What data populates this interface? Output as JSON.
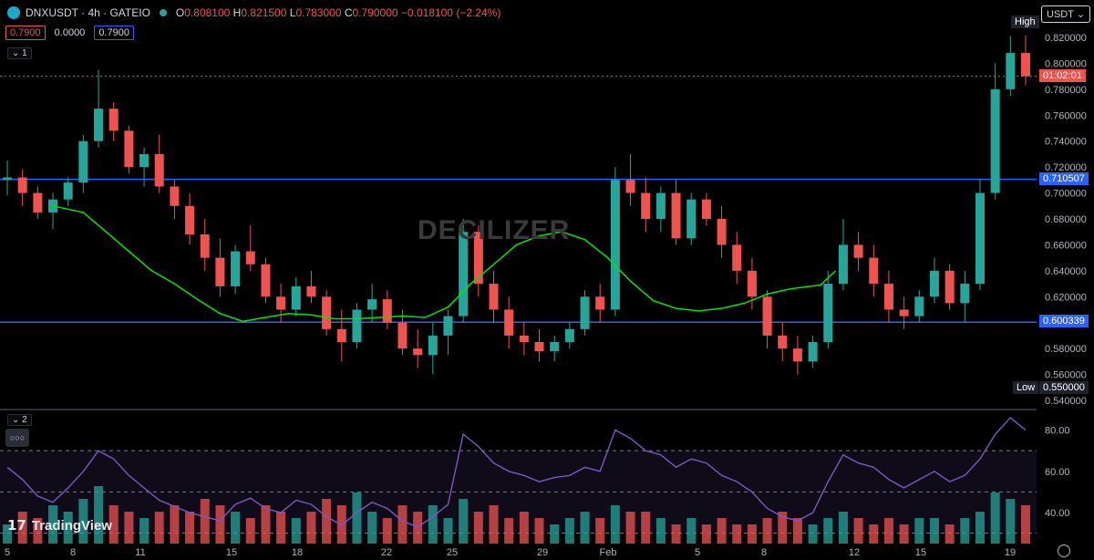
{
  "header": {
    "symbol": "DNXUSDT · 4h · GATEIO",
    "o_label": "O",
    "o": "0.808100",
    "h_label": "H",
    "h": "0.821500",
    "l_label": "L",
    "l": "0.783000",
    "c_label": "C",
    "c": "0.790000",
    "change": "−0.018100 (−2.24%)",
    "bid": "0.7900",
    "spread": "0.0000",
    "ask": "0.7900",
    "pane1_tag": "1",
    "pane2_tag": "2",
    "more_icon": "ellipsis-icon",
    "dots": "○○○"
  },
  "currency": "USDT",
  "watermark": "DECILIZER",
  "brand": "TradingView",
  "colors": {
    "up": "#26a69a",
    "down": "#ef5350",
    "level": "#2962ff",
    "ma": "#00e600",
    "rsi": "#7e57c2",
    "current": "#ef5350"
  },
  "chart_data": [
    {
      "type": "candlestick",
      "title": "DNXUSDT · 4h · GATEIO",
      "ylim": [
        0.54,
        0.83
      ],
      "y_ticks": [
        "0.820000",
        "0.800000",
        "0.780000",
        "0.760000",
        "0.740000",
        "0.720000",
        "0.700000",
        "0.680000",
        "0.660000",
        "0.640000",
        "0.620000",
        "0.600000",
        "0.580000",
        "0.560000",
        "0.540000"
      ],
      "x_ticks": [
        "5",
        "8",
        "11",
        "15",
        "18",
        "22",
        "25",
        "29",
        "Feb",
        "5",
        "8",
        "12",
        "15",
        "19"
      ],
      "levels": [
        {
          "value": 0.710507,
          "label": "0.710507"
        },
        {
          "value": 0.600339,
          "label": "0.600339"
        }
      ],
      "current_price": {
        "value": 0.79,
        "countdown": "01:02:01"
      },
      "high_label": "High",
      "low_label": "Low",
      "low_value": "0.550000",
      "ma_series": [
        [
          3.0,
          0.69
        ],
        [
          5.0,
          0.685
        ],
        [
          6.5,
          0.67
        ],
        [
          8.0,
          0.655
        ],
        [
          9.5,
          0.64
        ],
        [
          11.0,
          0.63
        ],
        [
          12.5,
          0.618
        ],
        [
          14.0,
          0.607
        ],
        [
          15.5,
          0.601
        ],
        [
          17.0,
          0.604
        ],
        [
          18.5,
          0.607
        ],
        [
          20.0,
          0.606
        ],
        [
          21.5,
          0.603
        ],
        [
          23.0,
          0.603
        ],
        [
          24.5,
          0.604
        ],
        [
          26.0,
          0.605
        ],
        [
          27.5,
          0.604
        ],
        [
          29.0,
          0.612
        ],
        [
          30.5,
          0.63
        ],
        [
          32.0,
          0.645
        ],
        [
          33.5,
          0.66
        ],
        [
          35.0,
          0.667
        ],
        [
          36.5,
          0.67
        ],
        [
          38.0,
          0.664
        ],
        [
          39.5,
          0.65
        ],
        [
          41.0,
          0.632
        ],
        [
          42.5,
          0.617
        ],
        [
          44.0,
          0.611
        ],
        [
          45.5,
          0.609
        ],
        [
          47.0,
          0.611
        ],
        [
          48.5,
          0.615
        ],
        [
          50.0,
          0.622
        ],
        [
          51.5,
          0.626
        ],
        [
          53.5,
          0.629
        ],
        [
          54.5,
          0.64
        ]
      ],
      "ohlc": [
        [
          0.71,
          0.725,
          0.698,
          0.712
        ],
        [
          0.712,
          0.718,
          0.69,
          0.7
        ],
        [
          0.7,
          0.705,
          0.68,
          0.685
        ],
        [
          0.685,
          0.7,
          0.672,
          0.695
        ],
        [
          0.695,
          0.712,
          0.69,
          0.708
        ],
        [
          0.708,
          0.745,
          0.7,
          0.74
        ],
        [
          0.74,
          0.795,
          0.735,
          0.765
        ],
        [
          0.765,
          0.77,
          0.74,
          0.748
        ],
        [
          0.748,
          0.752,
          0.715,
          0.72
        ],
        [
          0.72,
          0.735,
          0.705,
          0.73
        ],
        [
          0.73,
          0.745,
          0.7,
          0.705
        ],
        [
          0.705,
          0.71,
          0.68,
          0.69
        ],
        [
          0.69,
          0.7,
          0.66,
          0.668
        ],
        [
          0.668,
          0.68,
          0.64,
          0.65
        ],
        [
          0.65,
          0.665,
          0.62,
          0.628
        ],
        [
          0.628,
          0.66,
          0.622,
          0.655
        ],
        [
          0.655,
          0.675,
          0.64,
          0.645
        ],
        [
          0.645,
          0.65,
          0.615,
          0.62
        ],
        [
          0.62,
          0.63,
          0.6,
          0.61
        ],
        [
          0.61,
          0.635,
          0.605,
          0.628
        ],
        [
          0.628,
          0.64,
          0.615,
          0.62
        ],
        [
          0.62,
          0.625,
          0.59,
          0.595
        ],
        [
          0.595,
          0.61,
          0.57,
          0.585
        ],
        [
          0.585,
          0.615,
          0.58,
          0.61
        ],
        [
          0.61,
          0.63,
          0.6,
          0.618
        ],
        [
          0.618,
          0.625,
          0.595,
          0.6
        ],
        [
          0.6,
          0.61,
          0.575,
          0.58
        ],
        [
          0.58,
          0.595,
          0.565,
          0.575
        ],
        [
          0.575,
          0.6,
          0.56,
          0.59
        ],
        [
          0.59,
          0.61,
          0.575,
          0.605
        ],
        [
          0.605,
          0.68,
          0.6,
          0.67
        ],
        [
          0.67,
          0.675,
          0.62,
          0.63
        ],
        [
          0.63,
          0.64,
          0.6,
          0.61
        ],
        [
          0.61,
          0.62,
          0.58,
          0.59
        ],
        [
          0.59,
          0.6,
          0.575,
          0.585
        ],
        [
          0.585,
          0.595,
          0.57,
          0.578
        ],
        [
          0.578,
          0.59,
          0.57,
          0.585
        ],
        [
          0.585,
          0.6,
          0.58,
          0.595
        ],
        [
          0.595,
          0.625,
          0.59,
          0.62
        ],
        [
          0.62,
          0.63,
          0.6,
          0.61
        ],
        [
          0.61,
          0.72,
          0.605,
          0.71
        ],
        [
          0.71,
          0.73,
          0.69,
          0.7
        ],
        [
          0.7,
          0.712,
          0.67,
          0.68
        ],
        [
          0.68,
          0.705,
          0.67,
          0.7
        ],
        [
          0.7,
          0.71,
          0.66,
          0.665
        ],
        [
          0.665,
          0.7,
          0.66,
          0.695
        ],
        [
          0.695,
          0.7,
          0.675,
          0.68
        ],
        [
          0.68,
          0.69,
          0.65,
          0.66
        ],
        [
          0.66,
          0.67,
          0.63,
          0.64
        ],
        [
          0.64,
          0.65,
          0.61,
          0.62
        ],
        [
          0.62,
          0.625,
          0.58,
          0.59
        ],
        [
          0.59,
          0.6,
          0.57,
          0.58
        ],
        [
          0.58,
          0.59,
          0.56,
          0.57
        ],
        [
          0.57,
          0.59,
          0.565,
          0.585
        ],
        [
          0.585,
          0.64,
          0.58,
          0.63
        ],
        [
          0.63,
          0.68,
          0.625,
          0.66
        ],
        [
          0.66,
          0.67,
          0.64,
          0.65
        ],
        [
          0.65,
          0.66,
          0.62,
          0.63
        ],
        [
          0.63,
          0.64,
          0.6,
          0.61
        ],
        [
          0.61,
          0.62,
          0.595,
          0.605
        ],
        [
          0.605,
          0.625,
          0.6,
          0.62
        ],
        [
          0.62,
          0.65,
          0.615,
          0.64
        ],
        [
          0.64,
          0.645,
          0.61,
          0.615
        ],
        [
          0.615,
          0.64,
          0.6,
          0.63
        ],
        [
          0.63,
          0.71,
          0.625,
          0.7
        ],
        [
          0.7,
          0.8,
          0.695,
          0.78
        ],
        [
          0.78,
          0.821,
          0.775,
          0.808
        ],
        [
          0.808,
          0.8215,
          0.783,
          0.79
        ]
      ],
      "rsi": {
        "ylim": [
          20,
          90
        ],
        "y_ticks": [
          "80.00",
          "60.00",
          "40.00"
        ],
        "bands": [
          70,
          30
        ],
        "values": [
          62,
          56,
          48,
          45,
          52,
          60,
          70,
          66,
          58,
          52,
          46,
          43,
          40,
          38,
          36,
          44,
          47,
          42,
          40,
          46,
          44,
          38,
          34,
          40,
          45,
          42,
          36,
          33,
          38,
          44,
          78,
          72,
          64,
          60,
          58,
          55,
          57,
          58,
          62,
          60,
          80,
          76,
          70,
          68,
          62,
          66,
          64,
          58,
          55,
          50,
          42,
          38,
          36,
          40,
          55,
          68,
          64,
          62,
          56,
          52,
          56,
          60,
          55,
          58,
          66,
          78,
          86,
          80
        ],
        "volumes": [
          0.3,
          0.5,
          0.4,
          0.6,
          0.5,
          0.7,
          0.9,
          0.6,
          0.5,
          0.4,
          0.5,
          0.6,
          0.5,
          0.7,
          0.6,
          0.5,
          0.4,
          0.6,
          0.5,
          0.4,
          0.5,
          0.7,
          0.6,
          0.8,
          0.5,
          0.4,
          0.6,
          0.5,
          0.6,
          0.4,
          0.7,
          0.5,
          0.6,
          0.4,
          0.5,
          0.4,
          0.3,
          0.4,
          0.5,
          0.4,
          0.6,
          0.5,
          0.5,
          0.4,
          0.3,
          0.4,
          0.3,
          0.4,
          0.3,
          0.3,
          0.4,
          0.5,
          0.4,
          0.3,
          0.4,
          0.5,
          0.4,
          0.3,
          0.4,
          0.3,
          0.4,
          0.4,
          0.3,
          0.4,
          0.5,
          0.8,
          0.7,
          0.6
        ]
      }
    }
  ]
}
